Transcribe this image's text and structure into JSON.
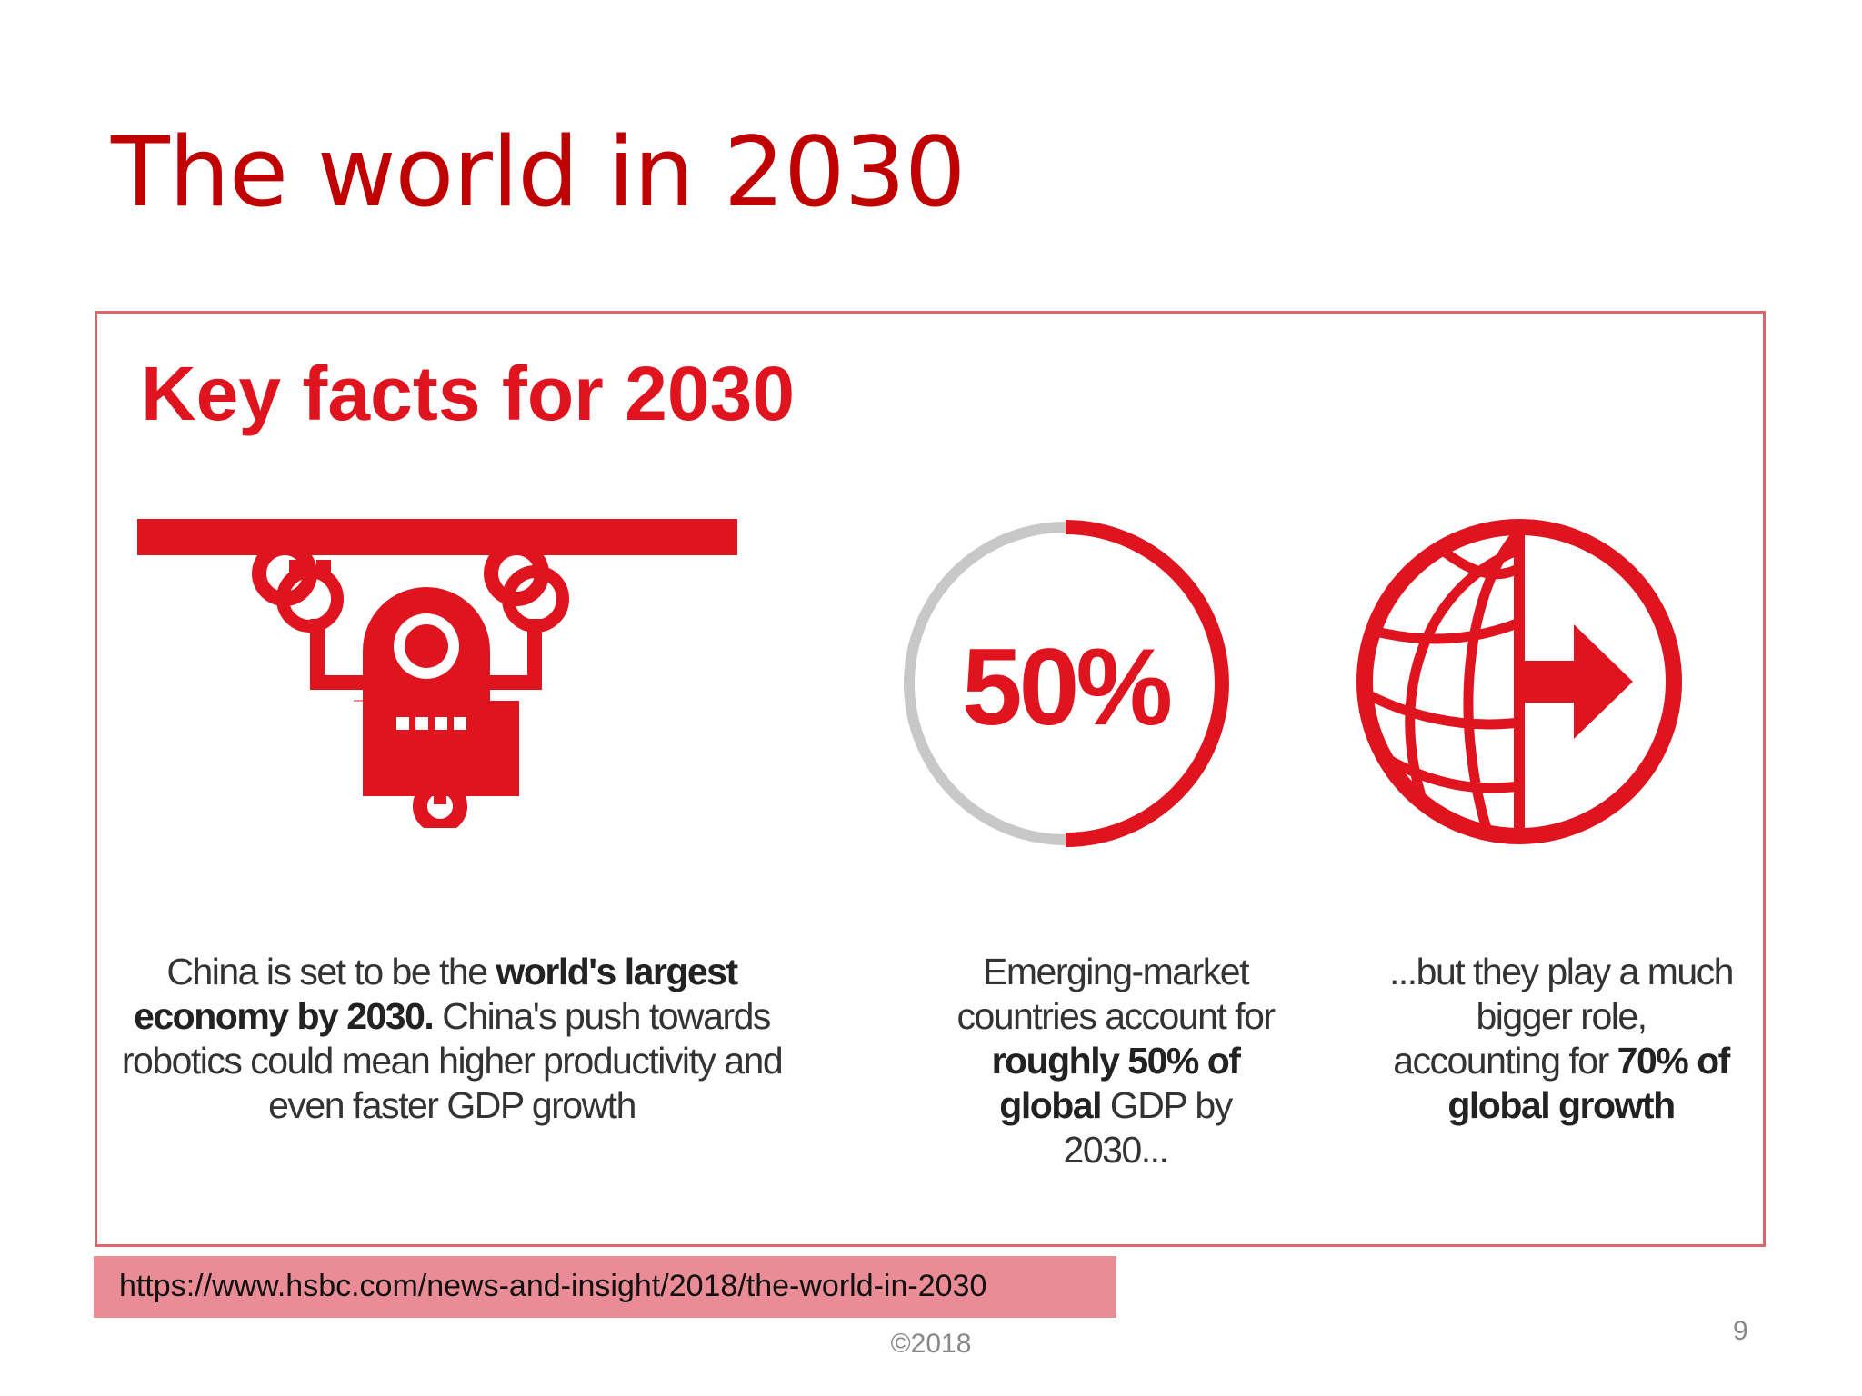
{
  "slide": {
    "title": "The world in 2030",
    "page_number": "9",
    "footer": "©2018",
    "source_url": "https://www.hsbc.com/news-and-insight/2018/the-world-in-2030"
  },
  "infographic": {
    "heading": "Key facts for 2030",
    "ring_label": "50%",
    "ring_fraction": 0.5,
    "facts": [
      {
        "parts": [
          {
            "t": "China is set to be the ",
            "b": false
          },
          {
            "t": "world's largest economy by 2030.",
            "b": true
          },
          {
            "t": " China's push towards robotics could mean higher productivity and even faster GDP growth",
            "b": false
          }
        ]
      },
      {
        "parts": [
          {
            "t": "Emerging-market countries account for ",
            "b": false
          },
          {
            "t": "roughly 50% of global",
            "b": true
          },
          {
            "t": " GDP by 2030...",
            "b": false
          }
        ]
      },
      {
        "parts": [
          {
            "t": "...but they play a much bigger role, accounting for ",
            "b": false
          },
          {
            "t": "70% of global growth",
            "b": true
          }
        ]
      }
    ],
    "colors": {
      "red": "#e0141e",
      "grey": "#c8c8c8"
    }
  }
}
